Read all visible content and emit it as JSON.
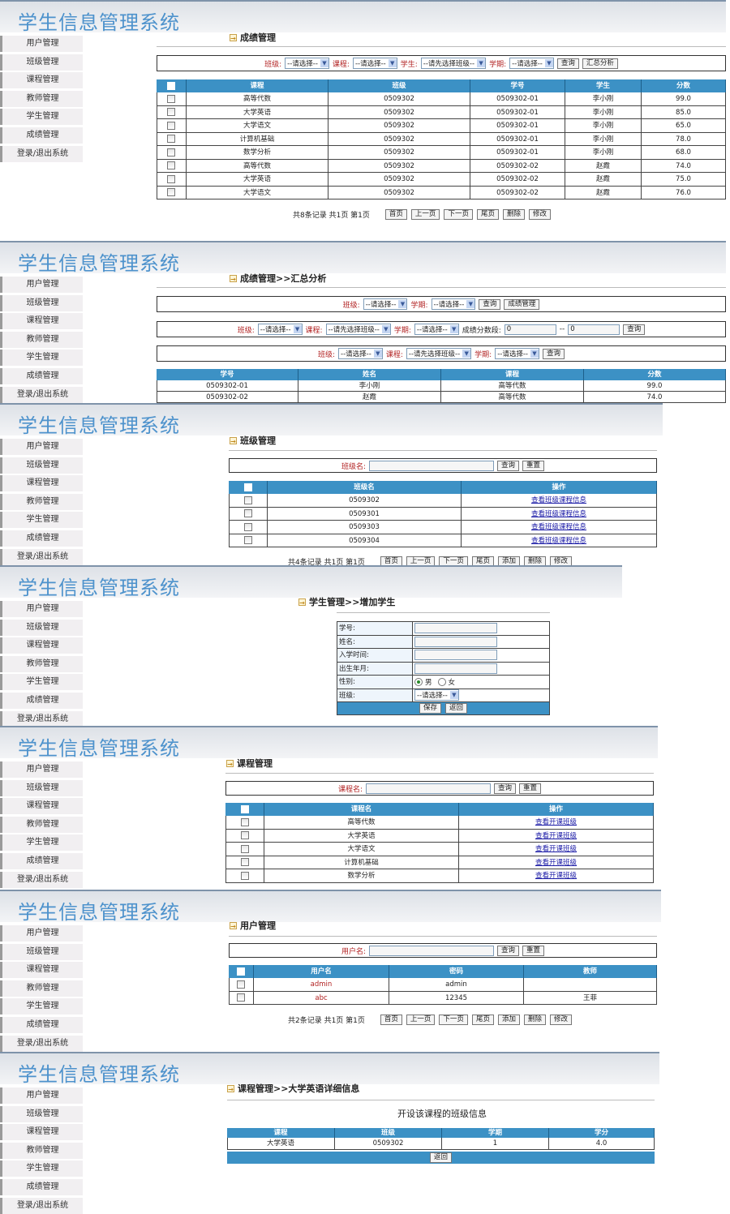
{
  "app_title": "学生信息管理系统",
  "sidebar": {
    "items": [
      "用户管理",
      "班级管理",
      "课程管理",
      "教师管理",
      "学生管理",
      "成绩管理",
      "登录/退出系统"
    ]
  },
  "colors": {
    "header_blue": "#3c91c5",
    "title_blue": "#4d92cc",
    "label_red": "#b22222",
    "link_blue": "#1a1aa6"
  },
  "panels": [
    {
      "heading": "成绩管理",
      "filters": [
        [
          {
            "type": "label",
            "text": "班级:"
          },
          {
            "type": "select",
            "text": "--请选择--"
          },
          {
            "type": "label",
            "text": "课程:"
          },
          {
            "type": "select",
            "text": "--请选择--"
          },
          {
            "type": "label",
            "text": "学生:"
          },
          {
            "type": "select",
            "text": "--请先选择班级--"
          },
          {
            "type": "label",
            "text": "学期:"
          },
          {
            "type": "select",
            "text": "--请选择--"
          },
          {
            "type": "button",
            "text": "查询"
          },
          {
            "type": "button",
            "text": "汇总分析"
          }
        ]
      ],
      "table": {
        "checkbox": true,
        "headers": [
          "课程",
          "班级",
          "学号",
          "学生",
          "分数"
        ],
        "rows": [
          [
            "高等代数",
            "0509302",
            "0509302-01",
            "李小刚",
            "99.0"
          ],
          [
            "大学英语",
            "0509302",
            "0509302-01",
            "李小刚",
            "85.0"
          ],
          [
            "大学语文",
            "0509302",
            "0509302-01",
            "李小刚",
            "65.0"
          ],
          [
            "计算机基础",
            "0509302",
            "0509302-01",
            "李小刚",
            "78.0"
          ],
          [
            "数学分析",
            "0509302",
            "0509302-01",
            "李小刚",
            "68.0"
          ],
          [
            "高等代数",
            "0509302",
            "0509302-02",
            "赵霞",
            "74.0"
          ],
          [
            "大学英语",
            "0509302",
            "0509302-02",
            "赵霞",
            "75.0"
          ],
          [
            "大学语文",
            "0509302",
            "0509302-02",
            "赵霞",
            "76.0"
          ]
        ]
      },
      "pagination": {
        "info": "共8条记录  共1页  第1页",
        "buttons": [
          "首页",
          "上一页",
          "下一页",
          "尾页",
          "删除",
          "修改"
        ]
      }
    },
    {
      "heading": "成绩管理>>汇总分析",
      "filters": [
        [
          {
            "type": "label",
            "text": "班级:"
          },
          {
            "type": "select",
            "text": "--请选择--"
          },
          {
            "type": "label",
            "text": "学期:"
          },
          {
            "type": "select",
            "text": "--请选择--"
          },
          {
            "type": "button",
            "text": "查询"
          },
          {
            "type": "button",
            "text": "成绩管理"
          }
        ],
        [
          {
            "type": "label",
            "text": "班级:"
          },
          {
            "type": "select",
            "text": "--请选择--"
          },
          {
            "type": "label",
            "text": "课程:"
          },
          {
            "type": "select",
            "text": "--请先选择班级--"
          },
          {
            "type": "label",
            "text": "学期:"
          },
          {
            "type": "select",
            "text": "--请选择--"
          },
          {
            "type": "text",
            "text": "成绩分数段:"
          },
          {
            "type": "input",
            "text": "0"
          },
          {
            "type": "text",
            "text": "--"
          },
          {
            "type": "input",
            "text": "0"
          },
          {
            "type": "button",
            "text": "查询"
          }
        ],
        [
          {
            "type": "label",
            "text": "班级:"
          },
          {
            "type": "select",
            "text": "--请选择--"
          },
          {
            "type": "label",
            "text": "课程:"
          },
          {
            "type": "select",
            "text": "--请先选择班级--"
          },
          {
            "type": "label",
            "text": "学期:"
          },
          {
            "type": "select",
            "text": "--请选择--"
          },
          {
            "type": "button",
            "text": "查询"
          }
        ]
      ],
      "table": {
        "checkbox": false,
        "headers": [
          "学号",
          "姓名",
          "课程",
          "分数"
        ],
        "rows": [
          [
            "0509302-01",
            "李小刚",
            "高等代数",
            "99.0"
          ],
          [
            "0509302-02",
            "赵霞",
            "高等代数",
            "74.0"
          ]
        ]
      }
    },
    {
      "heading": "班级管理",
      "filters": [
        [
          {
            "type": "label",
            "text": "班级名:"
          },
          {
            "type": "input",
            "text": ""
          },
          {
            "type": "button",
            "text": "查询"
          },
          {
            "type": "button",
            "text": "重置"
          }
        ]
      ],
      "table": {
        "checkbox": true,
        "headers": [
          "班级名",
          "操作"
        ],
        "rows": [
          [
            "0509302",
            "查看班级课程信息"
          ],
          [
            "0509301",
            "查看班级课程信息"
          ],
          [
            "0509303",
            "查看班级课程信息"
          ],
          [
            "0509304",
            "查看班级课程信息"
          ]
        ]
      },
      "pagination": {
        "info": "共4条记录  共1页  第1页",
        "buttons": [
          "首页",
          "上一页",
          "下一页",
          "尾页",
          "添加",
          "删除",
          "修改"
        ]
      }
    },
    {
      "heading": "学生管理>>增加学生",
      "form": {
        "fields": [
          {
            "label": "学号:",
            "type": "input",
            "value": ""
          },
          {
            "label": "姓名:",
            "type": "input",
            "value": ""
          },
          {
            "label": "入学时间:",
            "type": "input",
            "value": ""
          },
          {
            "label": "出生年月:",
            "type": "input",
            "value": ""
          },
          {
            "label": "性别:",
            "type": "radio",
            "options": [
              "男",
              "女"
            ],
            "selected": "男"
          },
          {
            "label": "班级:",
            "type": "select",
            "value": "--请选择--"
          }
        ],
        "buttons": [
          "保存",
          "返回"
        ]
      }
    },
    {
      "heading": "课程管理",
      "filters": [
        [
          {
            "type": "label",
            "text": "课程名:"
          },
          {
            "type": "input",
            "text": ""
          },
          {
            "type": "button",
            "text": "查询"
          },
          {
            "type": "button",
            "text": "重置"
          }
        ]
      ],
      "table": {
        "checkbox": true,
        "headers": [
          "课程名",
          "操作"
        ],
        "rows": [
          [
            "高等代数",
            "查看开课班级"
          ],
          [
            "大学英语",
            "查看开课班级"
          ],
          [
            "大学语文",
            "查看开课班级"
          ],
          [
            "计算机基础",
            "查看开课班级"
          ],
          [
            "数学分析",
            "查看开课班级"
          ]
        ]
      }
    },
    {
      "heading": "用户管理",
      "filters": [
        [
          {
            "type": "label",
            "text": "用户名:"
          },
          {
            "type": "input",
            "text": ""
          },
          {
            "type": "button",
            "text": "查询"
          },
          {
            "type": "button",
            "text": "重置"
          }
        ]
      ],
      "table": {
        "checkbox": true,
        "headers": [
          "用户名",
          "密码",
          "教师"
        ],
        "rows": [
          [
            "admin",
            "admin",
            ""
          ],
          [
            "abc",
            "12345",
            "王菲"
          ]
        ]
      },
      "pagination": {
        "info": "共2条记录  共1页  第1页",
        "buttons": [
          "首页",
          "上一页",
          "下一页",
          "尾页",
          "添加",
          "删除",
          "修改"
        ]
      }
    },
    {
      "heading": "课程管理>>大学英语详细信息",
      "caption": "开设该课程的班级信息",
      "table": {
        "checkbox": false,
        "headers": [
          "课程",
          "班级",
          "学期",
          "学分"
        ],
        "rows": [
          [
            "大学英语",
            "0509302",
            "1",
            "4.0"
          ]
        ]
      },
      "footer_button": "返回"
    }
  ]
}
